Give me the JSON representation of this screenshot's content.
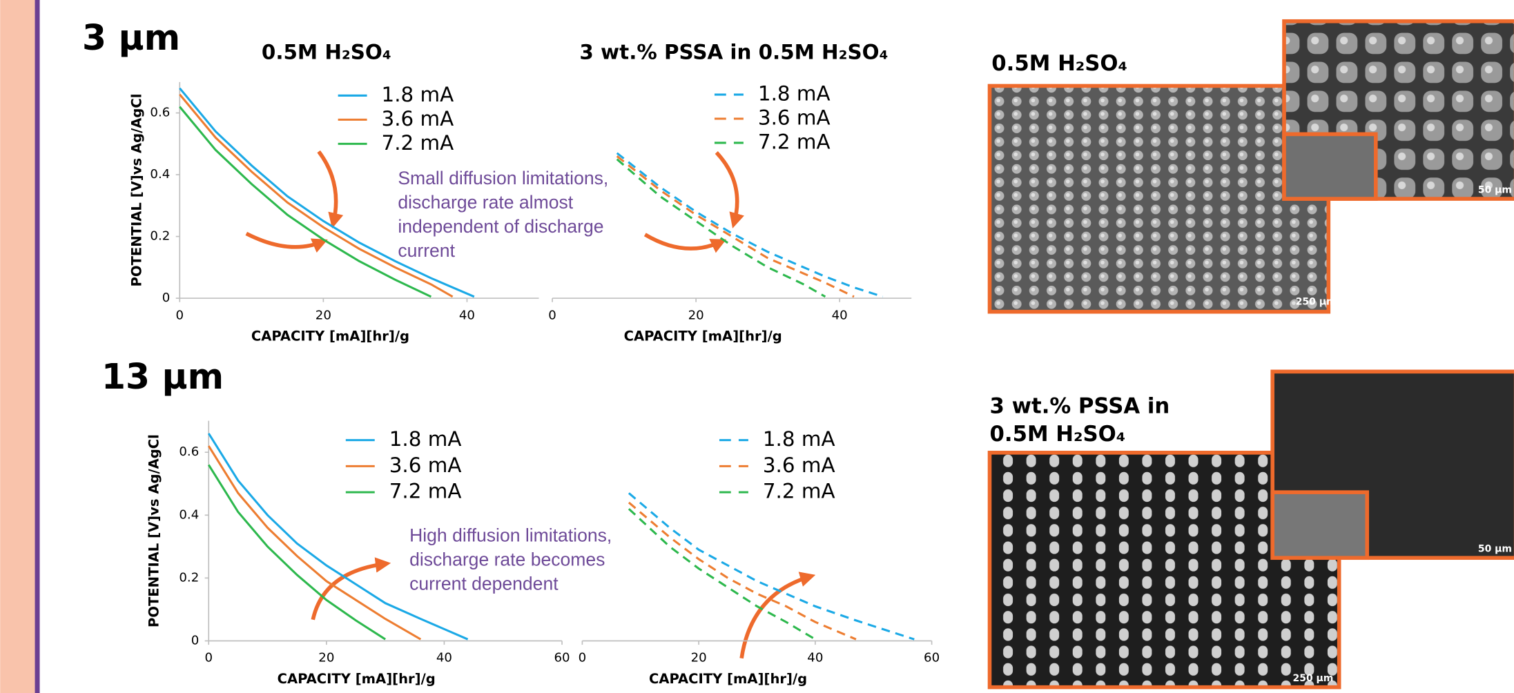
{
  "slide": {
    "heading_top": "3 μm",
    "heading_bottom": "13 μm",
    "image_top_caption": "0.5M H₂SO₄",
    "image_bottom_caption": [
      "3 wt.% PSSA in",
      "0.5M H₂SO₄"
    ],
    "scale_bars": [
      "250 μm",
      "50 μm",
      "250 μm",
      "50 μm"
    ]
  },
  "chart_data": [
    {
      "type": "line",
      "title": "0.5M H₂SO₄",
      "xlabel": "CAPACITY [mA][hr]/g",
      "ylabel": "POTENTIAL [V]vs Ag/AgCl",
      "annotation": [
        "Small diffusion limitations,",
        "discharge rate almost",
        "independent of discharge",
        "current"
      ],
      "x": [
        0,
        5,
        10,
        15,
        20,
        25,
        30,
        35,
        38,
        41
      ],
      "series": [
        {
          "name": "1.8 mA",
          "color": "#1ba9e6",
          "values": [
            0.68,
            0.54,
            0.43,
            0.33,
            0.25,
            0.18,
            0.12,
            0.065,
            0.035,
            0.005
          ]
        },
        {
          "name": "3.6 mA",
          "color": "#ed7d31",
          "values": [
            0.66,
            0.52,
            0.41,
            0.31,
            0.23,
            0.16,
            0.1,
            0.045,
            0.005,
            null
          ]
        },
        {
          "name": "7.2 mA",
          "color": "#2db84d",
          "values": [
            0.62,
            0.48,
            0.37,
            0.27,
            0.19,
            0.12,
            0.06,
            0.005,
            null,
            null
          ]
        }
      ],
      "xlim": [
        0,
        50
      ],
      "ylim": [
        0,
        0.7
      ],
      "xticks": [
        0,
        20,
        40
      ],
      "yticks": [
        0,
        0.2,
        0.4,
        0.6
      ],
      "dashed": false
    },
    {
      "type": "line",
      "title": "3 wt.% PSSA in 0.5M H₂SO₄",
      "xlabel": "CAPACITY [mA][hr]/g",
      "x": [
        9,
        15,
        20,
        25,
        30,
        35,
        38,
        42,
        46
      ],
      "series": [
        {
          "name": "1.8 mA",
          "color": "#1ba9e6",
          "values": [
            0.47,
            0.36,
            0.28,
            0.21,
            0.15,
            0.1,
            0.07,
            0.035,
            0.005
          ]
        },
        {
          "name": "3.6 mA",
          "color": "#ed7d31",
          "values": [
            0.46,
            0.35,
            0.27,
            0.2,
            0.13,
            0.08,
            0.05,
            0.005,
            null
          ]
        },
        {
          "name": "7.2 mA",
          "color": "#2db84d",
          "values": [
            0.45,
            0.33,
            0.25,
            0.17,
            0.1,
            0.045,
            0.005,
            null,
            null
          ]
        }
      ],
      "xlim": [
        0,
        50
      ],
      "ylim": [
        0,
        0.7
      ],
      "xticks": [
        0,
        20,
        40
      ],
      "dashed": true
    },
    {
      "type": "line",
      "xlabel": "CAPACITY [mA][hr]/g",
      "ylabel": "POTENTIAL [V]vs Ag/AgCl",
      "annotation": [
        "High diffusion limitations,",
        "discharge rate becomes",
        "current dependent"
      ],
      "x": [
        0,
        5,
        10,
        15,
        20,
        25,
        30,
        36,
        44
      ],
      "series": [
        {
          "name": "1.8 mA",
          "color": "#1ba9e6",
          "values": [
            0.66,
            0.51,
            0.4,
            0.31,
            0.24,
            0.18,
            0.12,
            0.07,
            0.005
          ]
        },
        {
          "name": "3.6 mA",
          "color": "#ed7d31",
          "values": [
            0.62,
            0.47,
            0.36,
            0.27,
            0.19,
            0.13,
            0.07,
            0.005,
            null
          ]
        },
        {
          "name": "7.2 mA",
          "color": "#2db84d",
          "values": [
            0.56,
            0.41,
            0.3,
            0.21,
            0.13,
            0.065,
            0.005,
            null,
            null
          ]
        }
      ],
      "xlim": [
        0,
        60
      ],
      "ylim": [
        0,
        0.7
      ],
      "xticks": [
        0,
        20,
        40,
        60
      ],
      "yticks": [
        0,
        0.2,
        0.4,
        0.6
      ],
      "dashed": false
    },
    {
      "type": "line",
      "xlabel": "CAPACITY [mA][hr]/g",
      "x": [
        8,
        15,
        20,
        25,
        30,
        35,
        40,
        47,
        57
      ],
      "series": [
        {
          "name": "1.8 mA",
          "color": "#1ba9e6",
          "values": [
            0.47,
            0.36,
            0.29,
            0.24,
            0.19,
            0.15,
            0.11,
            0.065,
            0.005
          ]
        },
        {
          "name": "3.6 mA",
          "color": "#ed7d31",
          "values": [
            0.44,
            0.33,
            0.26,
            0.2,
            0.15,
            0.11,
            0.06,
            0.005,
            null
          ]
        },
        {
          "name": "7.2 mA",
          "color": "#2db84d",
          "values": [
            0.42,
            0.3,
            0.23,
            0.17,
            0.11,
            0.06,
            0.005,
            null,
            null
          ]
        }
      ],
      "xlim": [
        0,
        60
      ],
      "ylim": [
        0,
        0.7
      ],
      "xticks": [
        0,
        20,
        40,
        60
      ],
      "dashed": true
    }
  ]
}
